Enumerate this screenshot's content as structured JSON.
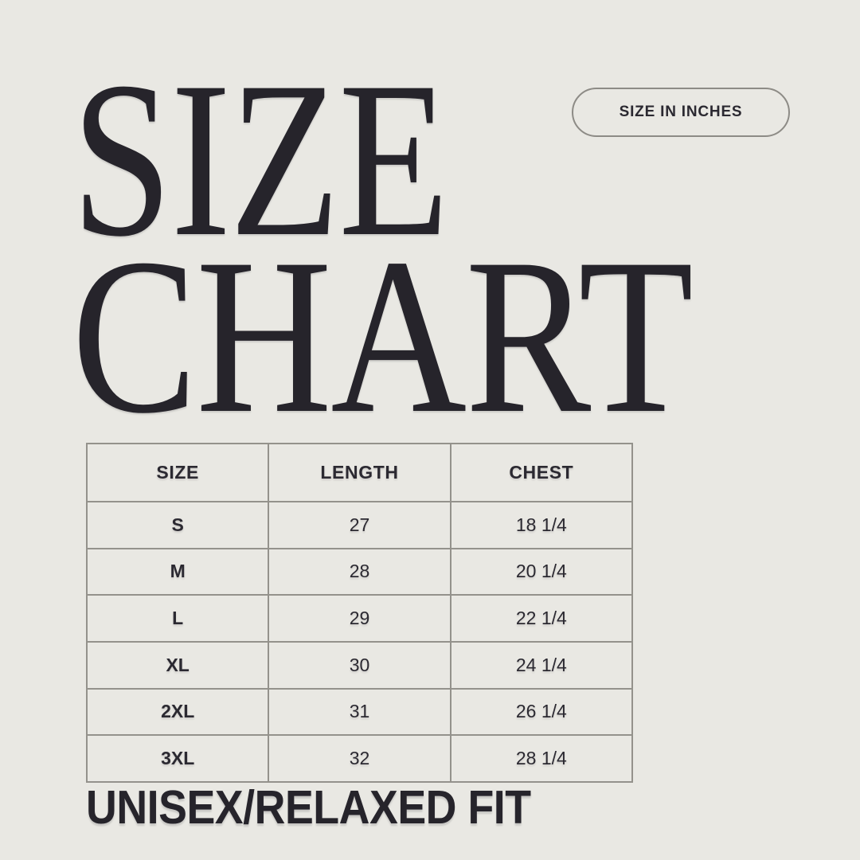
{
  "page": {
    "background_color": "#e9e8e3",
    "ink_color": "#26242b",
    "border_color": "#8d8b86"
  },
  "title": {
    "line1": "SIZE",
    "line2": "CHART"
  },
  "badge": {
    "label": "SIZE IN INCHES"
  },
  "footer": {
    "label": "UNISEX/RELAXED FIT"
  },
  "chart_data": {
    "type": "table",
    "title": "SIZE CHART",
    "units_note": "SIZE IN INCHES",
    "footnote": "UNISEX/RELAXED FIT",
    "columns": [
      "SIZE",
      "LENGTH",
      "CHEST"
    ],
    "rows": [
      [
        "S",
        "27",
        "18 1/4"
      ],
      [
        "M",
        "28",
        "20 1/4"
      ],
      [
        "L",
        "29",
        "22 1/4"
      ],
      [
        "XL",
        "30",
        "24 1/4"
      ],
      [
        "2XL",
        "31",
        "26 1/4"
      ],
      [
        "3XL",
        "32",
        "28 1/4"
      ]
    ]
  }
}
